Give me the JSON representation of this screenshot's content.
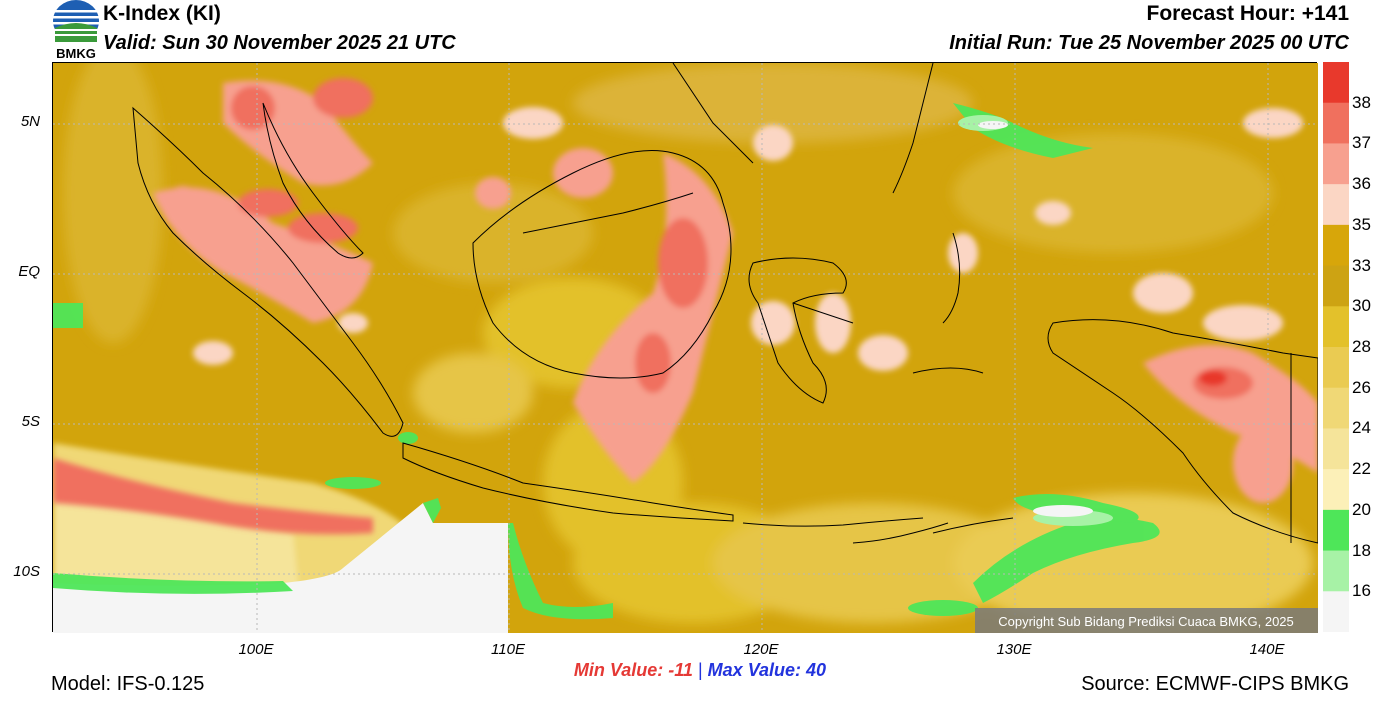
{
  "header": {
    "title": "K-Index (KI)",
    "valid": "Valid: Sun 30 November 2025 21 UTC",
    "forecast_hour": "Forecast Hour: +141",
    "initial_run": "Initial Run: Tue 25 November 2025 00 UTC"
  },
  "logo": {
    "text": "BMKG"
  },
  "map": {
    "lat_labels": [
      "5N",
      "EQ",
      "5S",
      "10S"
    ],
    "lon_labels": [
      "100E",
      "110E",
      "120E",
      "130E",
      "140E"
    ],
    "copyright": "Copyright Sub Bidang Prediksi Cuaca BMKG, 2025"
  },
  "legend": {
    "labels": [
      "38",
      "37",
      "36",
      "35",
      "33",
      "30",
      "28",
      "26",
      "24",
      "22",
      "20",
      "18",
      "16"
    ],
    "colors": [
      "#e8392c",
      "#f0705e",
      "#f7a08f",
      "#fbd6c4",
      "#d7a60a",
      "#cda313",
      "#e3c12b",
      "#eacb52",
      "#f0d876",
      "#f5e49a",
      "#fcf0b8",
      "#4ee659",
      "#a7f2a6",
      "#f5f5f5"
    ]
  },
  "stats": {
    "min": "Min Value: -11",
    "separator": "|",
    "max": "Max Value:  40"
  },
  "footer": {
    "model": "Model: IFS-0.125",
    "source": "Source: ECMWF-CIPS BMKG"
  }
}
